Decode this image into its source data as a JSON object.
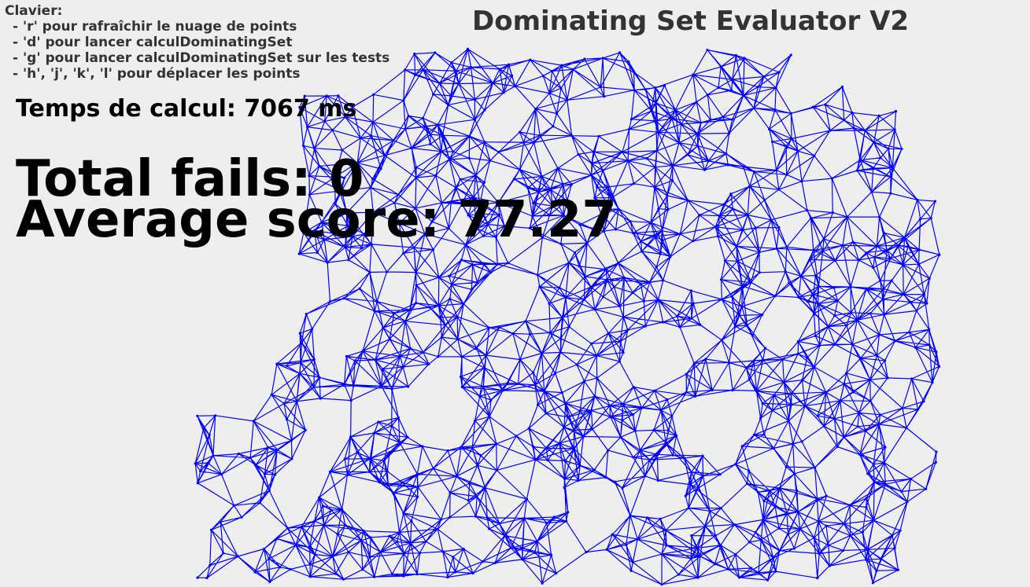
{
  "window": {
    "title": "Dominating Set Evaluator V2"
  },
  "keyboard": {
    "heading": "Clavier:",
    "items": [
      "- 'r' pour rafraîchir le nuage de points",
      "- 'd' pour lancer calculDominatingSet",
      "- 'g' pour lancer calculDominatingSet sur les tests",
      "- 'h', 'j', 'k', 'l' pour déplacer les points"
    ]
  },
  "stats": {
    "calc_time": "Temps de calcul: 7067 ms",
    "total_fails": "Total fails: 0",
    "average_score": "Average score: 77.27"
  },
  "colors": {
    "background": "#eeeeee",
    "edge": "#0000ff",
    "point": "#0000ff",
    "title_text": "#333333",
    "stat_text": "#000000"
  }
}
